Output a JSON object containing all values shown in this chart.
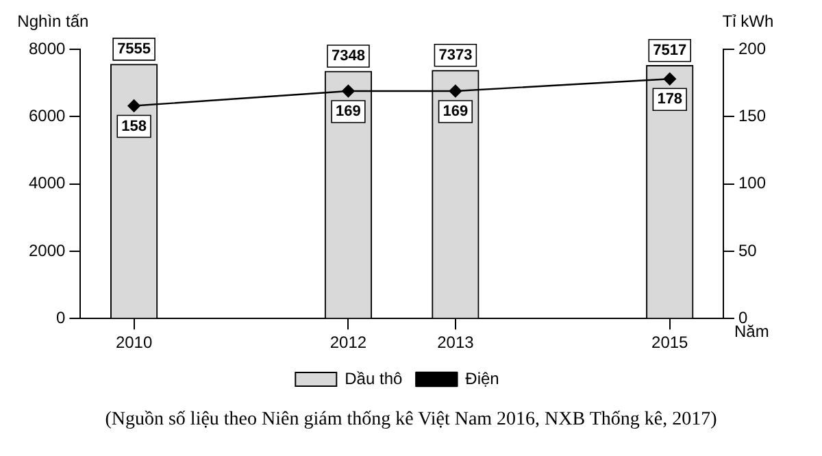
{
  "chart_data": {
    "type": "bar",
    "x": [
      2010,
      2012,
      2013,
      2015
    ],
    "xlim": [
      2009.5,
      2015.5
    ],
    "xticks": [
      2010,
      2012,
      2013,
      2015
    ],
    "xlabel": "Năm",
    "ylabel": "Nghìn tấn",
    "y2label": "Tỉ kWh",
    "ylim": [
      0,
      8000
    ],
    "yticks": [
      0,
      2000,
      4000,
      6000,
      8000
    ],
    "y2lim": [
      0,
      200
    ],
    "y2ticks": [
      0,
      50,
      100,
      150,
      200
    ],
    "series": [
      {
        "name": "Dầu thô",
        "color": "#d9d9d9",
        "values": [
          7555,
          7348,
          7373,
          7517
        ]
      },
      {
        "name": "Điện",
        "type": "line",
        "axis": "y2",
        "color": "#000000",
        "values": [
          158,
          169,
          169,
          178
        ]
      }
    ],
    "marker": "diamond",
    "line_style": "solid",
    "data_labels": true,
    "legend": "bottom",
    "grid": false,
    "annotations": [
      "(Nguồn số liệu theo Niên giám thống kê Việt Nam 2016, NXB Thống kê, 2017)"
    ]
  }
}
